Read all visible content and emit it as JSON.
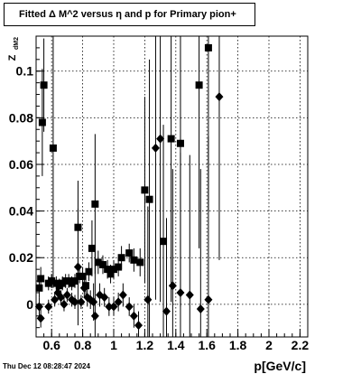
{
  "title": "Fitted Δ M^2 versus η and p for Primary pion+",
  "timestamp": "Thu Dec 12 08:28:47 2024",
  "chart_data": {
    "type": "scatter",
    "title": "Fitted Δ M^2 versus η and p for Primary pion+",
    "xlabel": "p[GeV/c]",
    "ylabel": "Z",
    "ylabel_sub": "dM2",
    "xlim": [
      0.5,
      2.25
    ],
    "ylim": [
      -0.014,
      0.115
    ],
    "x_ticks": [
      {
        "value": 0.6,
        "label": "0.6"
      },
      {
        "value": 0.8,
        "label": "0.8"
      },
      {
        "value": 1.0,
        "label": "1"
      },
      {
        "value": 1.2,
        "label": "1.2"
      },
      {
        "value": 1.4,
        "label": "1.4"
      },
      {
        "value": 1.6,
        "label": "1.6"
      },
      {
        "value": 1.8,
        "label": "1.8"
      },
      {
        "value": 2.0,
        "label": "2"
      },
      {
        "value": 2.2,
        "label": "2.2"
      }
    ],
    "y_ticks": [
      {
        "value": 0.0,
        "label": "0"
      },
      {
        "value": 0.02,
        "label": "0.02"
      },
      {
        "value": 0.04,
        "label": "0.04"
      },
      {
        "value": 0.06,
        "label": "0.06"
      },
      {
        "value": 0.08,
        "label": "0.08"
      },
      {
        "value": 0.1,
        "label": "0.1"
      }
    ],
    "grid": true,
    "series": [
      {
        "marker": "square",
        "color": "#000000",
        "points": [
          {
            "x": 0.52,
            "y": 0.007,
            "err": 0.004
          },
          {
            "x": 0.53,
            "y": 0.011,
            "err": 0.005
          },
          {
            "x": 0.54,
            "y": 0.078,
            "err": 0.023
          },
          {
            "x": 0.55,
            "y": 0.094,
            "err": 0.02
          },
          {
            "x": 0.58,
            "y": 0.009,
            "err": 0.003
          },
          {
            "x": 0.6,
            "y": 0.01,
            "err": 0.003
          },
          {
            "x": 0.61,
            "y": 0.067,
            "err": 0.06
          },
          {
            "x": 0.63,
            "y": 0.009,
            "err": 0.003
          },
          {
            "x": 0.65,
            "y": 0.008,
            "err": 0.003
          },
          {
            "x": 0.67,
            "y": 0.009,
            "err": 0.003
          },
          {
            "x": 0.69,
            "y": 0.01,
            "err": 0.003
          },
          {
            "x": 0.71,
            "y": 0.01,
            "err": 0.003
          },
          {
            "x": 0.73,
            "y": 0.009,
            "err": 0.003
          },
          {
            "x": 0.75,
            "y": 0.01,
            "err": 0.003
          },
          {
            "x": 0.77,
            "y": 0.033,
            "err": 0.02
          },
          {
            "x": 0.78,
            "y": 0.012,
            "err": 0.003
          },
          {
            "x": 0.8,
            "y": 0.012,
            "err": 0.004
          },
          {
            "x": 0.82,
            "y": 0.008,
            "err": 0.004
          },
          {
            "x": 0.84,
            "y": 0.014,
            "err": 0.004
          },
          {
            "x": 0.86,
            "y": 0.024,
            "err": 0.012
          },
          {
            "x": 0.88,
            "y": 0.043,
            "err": 0.03
          },
          {
            "x": 0.9,
            "y": 0.018,
            "err": 0.005
          },
          {
            "x": 0.93,
            "y": 0.017,
            "err": 0.004
          },
          {
            "x": 0.96,
            "y": 0.015,
            "err": 0.004
          },
          {
            "x": 0.98,
            "y": 0.013,
            "err": 0.004
          },
          {
            "x": 1.0,
            "y": 0.015,
            "err": 0.004
          },
          {
            "x": 1.03,
            "y": 0.016,
            "err": 0.004
          },
          {
            "x": 1.05,
            "y": 0.02,
            "err": 0.005
          },
          {
            "x": 1.1,
            "y": 0.022,
            "err": 0.004
          },
          {
            "x": 1.13,
            "y": 0.019,
            "err": 0.005
          },
          {
            "x": 1.17,
            "y": 0.018,
            "err": 0.006
          },
          {
            "x": 1.2,
            "y": 0.049,
            "err": 0.04
          },
          {
            "x": 1.23,
            "y": 0.045,
            "err": 0.06
          },
          {
            "x": 1.32,
            "y": 0.027,
            "err": 0.05
          },
          {
            "x": 1.37,
            "y": 0.071,
            "err": 0.07
          },
          {
            "x": 1.43,
            "y": 0.069,
            "err": 0.07
          },
          {
            "x": 1.55,
            "y": 0.094,
            "err": 0.07
          },
          {
            "x": 1.61,
            "y": 0.11,
            "err": 0.07
          }
        ]
      },
      {
        "marker": "diamond",
        "color": "#000000",
        "points": [
          {
            "x": 0.52,
            "y": -0.001,
            "err": 0.004
          },
          {
            "x": 0.53,
            "y": -0.006,
            "err": 0.004
          },
          {
            "x": 0.58,
            "y": -0.001,
            "err": 0.003
          },
          {
            "x": 0.6,
            "y": 0.01,
            "err": 0.003
          },
          {
            "x": 0.62,
            "y": 0.002,
            "err": 0.003
          },
          {
            "x": 0.64,
            "y": 0.005,
            "err": 0.003
          },
          {
            "x": 0.66,
            "y": 0.003,
            "err": 0.003
          },
          {
            "x": 0.68,
            "y": 0.0,
            "err": 0.003
          },
          {
            "x": 0.7,
            "y": 0.004,
            "err": 0.003
          },
          {
            "x": 0.73,
            "y": 0.002,
            "err": 0.003
          },
          {
            "x": 0.75,
            "y": 0.001,
            "err": 0.003
          },
          {
            "x": 0.77,
            "y": 0.016,
            "err": 0.025
          },
          {
            "x": 0.79,
            "y": 0.001,
            "err": 0.003
          },
          {
            "x": 0.81,
            "y": 0.007,
            "err": 0.004
          },
          {
            "x": 0.83,
            "y": 0.003,
            "err": 0.004
          },
          {
            "x": 0.85,
            "y": 0.002,
            "err": 0.004
          },
          {
            "x": 0.87,
            "y": 0.001,
            "err": 0.008
          },
          {
            "x": 0.88,
            "y": -0.005,
            "err": 0.03
          },
          {
            "x": 0.91,
            "y": 0.004,
            "err": 0.005
          },
          {
            "x": 0.94,
            "y": 0.003,
            "err": 0.004
          },
          {
            "x": 0.97,
            "y": -0.001,
            "err": 0.004
          },
          {
            "x": 1.0,
            "y": -0.001,
            "err": 0.004
          },
          {
            "x": 1.03,
            "y": 0.001,
            "err": 0.004
          },
          {
            "x": 1.06,
            "y": 0.004,
            "err": 0.005
          },
          {
            "x": 1.1,
            "y": -0.001,
            "err": 0.004
          },
          {
            "x": 1.13,
            "y": -0.005,
            "err": 0.005
          },
          {
            "x": 1.16,
            "y": -0.009,
            "err": 0.006
          },
          {
            "x": 1.22,
            "y": 0.002,
            "err": 0.04
          },
          {
            "x": 1.27,
            "y": 0.067,
            "err": 0.065
          },
          {
            "x": 1.3,
            "y": 0.071,
            "err": 0.07
          },
          {
            "x": 1.34,
            "y": -0.003,
            "err": 0.04
          },
          {
            "x": 1.38,
            "y": 0.008,
            "err": 0.05
          },
          {
            "x": 1.43,
            "y": 0.005,
            "err": 0.06
          },
          {
            "x": 1.49,
            "y": 0.004,
            "err": 0.06
          },
          {
            "x": 1.56,
            "y": -0.002,
            "err": 0.06
          },
          {
            "x": 1.61,
            "y": 0.002,
            "err": 0.07
          },
          {
            "x": 1.68,
            "y": 0.089,
            "err": 0.07
          }
        ]
      }
    ]
  }
}
